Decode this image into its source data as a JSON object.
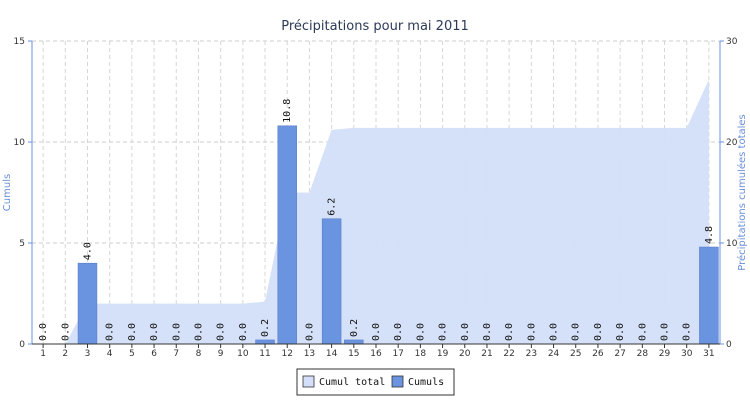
{
  "chart_data": {
    "type": "bar",
    "title": "Précipitations pour mai 2011",
    "xlabel": "",
    "ylabel": "Cumuls",
    "y2label": "Précipitations cumulées totales",
    "categories": [
      "1",
      "2",
      "3",
      "4",
      "5",
      "6",
      "7",
      "8",
      "9",
      "10",
      "11",
      "12",
      "13",
      "14",
      "15",
      "16",
      "17",
      "18",
      "19",
      "20",
      "21",
      "22",
      "23",
      "24",
      "25",
      "26",
      "27",
      "28",
      "29",
      "30",
      "31"
    ],
    "ylim": [
      0,
      15
    ],
    "yticks": [
      0,
      5,
      10,
      15
    ],
    "y2lim": [
      0,
      30
    ],
    "y2ticks": [
      0,
      10,
      20,
      30
    ],
    "grid": true,
    "legend_position": "bottom-center",
    "series": [
      {
        "name": "Cumul total",
        "type": "area",
        "axis": "right",
        "color": "#d3dff8",
        "values": [
          0,
          0,
          4.0,
          4.0,
          4.0,
          4.0,
          4.0,
          4.0,
          4.0,
          4.0,
          4.2,
          15.0,
          15.0,
          21.2,
          21.4,
          21.4,
          21.4,
          21.4,
          21.4,
          21.4,
          21.4,
          21.4,
          21.4,
          21.4,
          21.4,
          21.4,
          21.4,
          21.4,
          21.4,
          21.4,
          26.2
        ]
      },
      {
        "name": "Cumuls",
        "type": "bar",
        "axis": "left",
        "color": "#6a93e0",
        "values": [
          0.0,
          0.0,
          4.0,
          0.0,
          0.0,
          0.0,
          0.0,
          0.0,
          0.0,
          0.0,
          0.2,
          10.8,
          0.0,
          6.2,
          0.2,
          0.0,
          0.0,
          0.0,
          0.0,
          0.0,
          0.0,
          0.0,
          0.0,
          0.0,
          0.0,
          0.0,
          0.0,
          0.0,
          0.0,
          0.0,
          4.8
        ],
        "labels": [
          "0.0",
          "0.0",
          "4.0",
          "0.0",
          "0.0",
          "0.0",
          "0.0",
          "0.0",
          "0.0",
          "0.0",
          "0.2",
          "10.8",
          "0.0",
          "6.2",
          "0.2",
          "0.0",
          "0.0",
          "0.0",
          "0.0",
          "0.0",
          "0.0",
          "0.0",
          "0.0",
          "0.0",
          "0.0",
          "0.0",
          "0.0",
          "0.0",
          "0.0",
          "0.0",
          "4.8"
        ]
      }
    ]
  }
}
